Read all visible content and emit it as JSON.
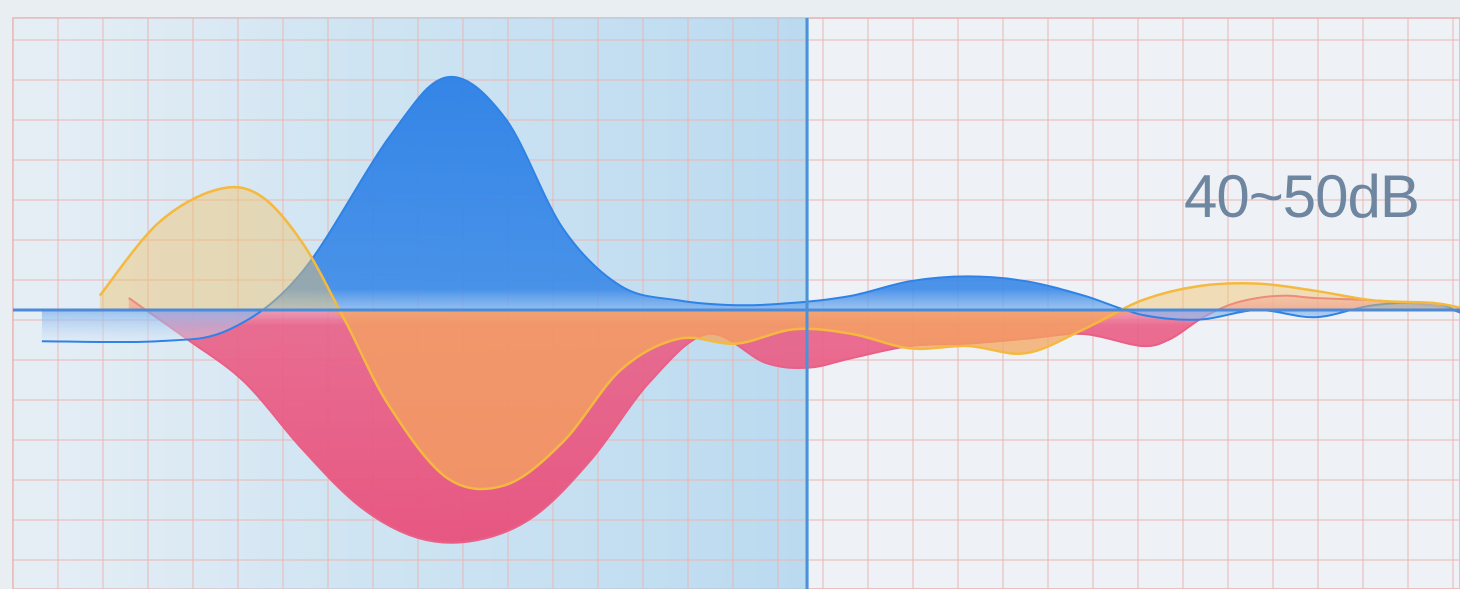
{
  "chart_data": {
    "type": "area",
    "label": "40~50dB",
    "x_range": [
      0,
      1
    ],
    "y_range": [
      -1,
      1
    ],
    "grid": true,
    "highlight_region": [
      0,
      0.55
    ],
    "series": [
      {
        "color": "#2f82e6",
        "x": [
          0.02,
          0.1,
          0.15,
          0.2,
          0.26,
          0.3,
          0.34,
          0.38,
          0.42,
          0.46,
          0.5,
          0.54,
          0.58,
          0.62,
          0.66,
          0.7,
          0.74,
          0.78,
          0.82,
          0.86,
          0.9,
          0.94,
          0.98,
          1.0
        ],
        "values": [
          -0.13,
          -0.13,
          -0.08,
          0.16,
          0.72,
          0.97,
          0.8,
          0.34,
          0.1,
          0.04,
          0.02,
          0.03,
          0.06,
          0.12,
          0.14,
          0.12,
          0.06,
          -0.02,
          -0.04,
          0.0,
          -0.03,
          0.02,
          0.03,
          -0.01
        ]
      },
      {
        "color": "#f2c46c",
        "x": [
          0.06,
          0.1,
          0.14,
          0.17,
          0.2,
          0.23,
          0.26,
          0.3,
          0.34,
          0.38,
          0.42,
          0.46,
          0.5,
          0.54,
          0.58,
          0.62,
          0.66,
          0.7,
          0.74,
          0.78,
          0.82,
          0.86,
          0.9,
          0.94,
          0.98,
          1.0
        ],
        "values": [
          0.06,
          0.36,
          0.5,
          0.48,
          0.28,
          -0.05,
          -0.4,
          -0.7,
          -0.73,
          -0.55,
          -0.25,
          -0.12,
          -0.14,
          -0.08,
          -0.1,
          -0.16,
          -0.15,
          -0.18,
          -0.08,
          0.04,
          0.1,
          0.11,
          0.08,
          0.04,
          0.03,
          0.01
        ]
      },
      {
        "color": "#ea5f86",
        "x": [
          0.08,
          0.12,
          0.16,
          0.2,
          0.24,
          0.28,
          0.32,
          0.36,
          0.4,
          0.44,
          0.48,
          0.52,
          0.55,
          0.58,
          0.62,
          0.66,
          0.7,
          0.74,
          0.78,
          0.8,
          0.82,
          0.84,
          0.86,
          0.88,
          0.9,
          0.94,
          0.98,
          1.0
        ],
        "values": [
          0.05,
          -0.12,
          -0.3,
          -0.58,
          -0.82,
          -0.95,
          -0.96,
          -0.86,
          -0.62,
          -0.3,
          -0.1,
          -0.22,
          -0.24,
          -0.2,
          -0.15,
          -0.14,
          -0.12,
          -0.1,
          -0.15,
          -0.12,
          -0.04,
          0.02,
          0.05,
          0.06,
          0.05,
          0.04,
          0.02,
          -0.01
        ]
      }
    ]
  }
}
